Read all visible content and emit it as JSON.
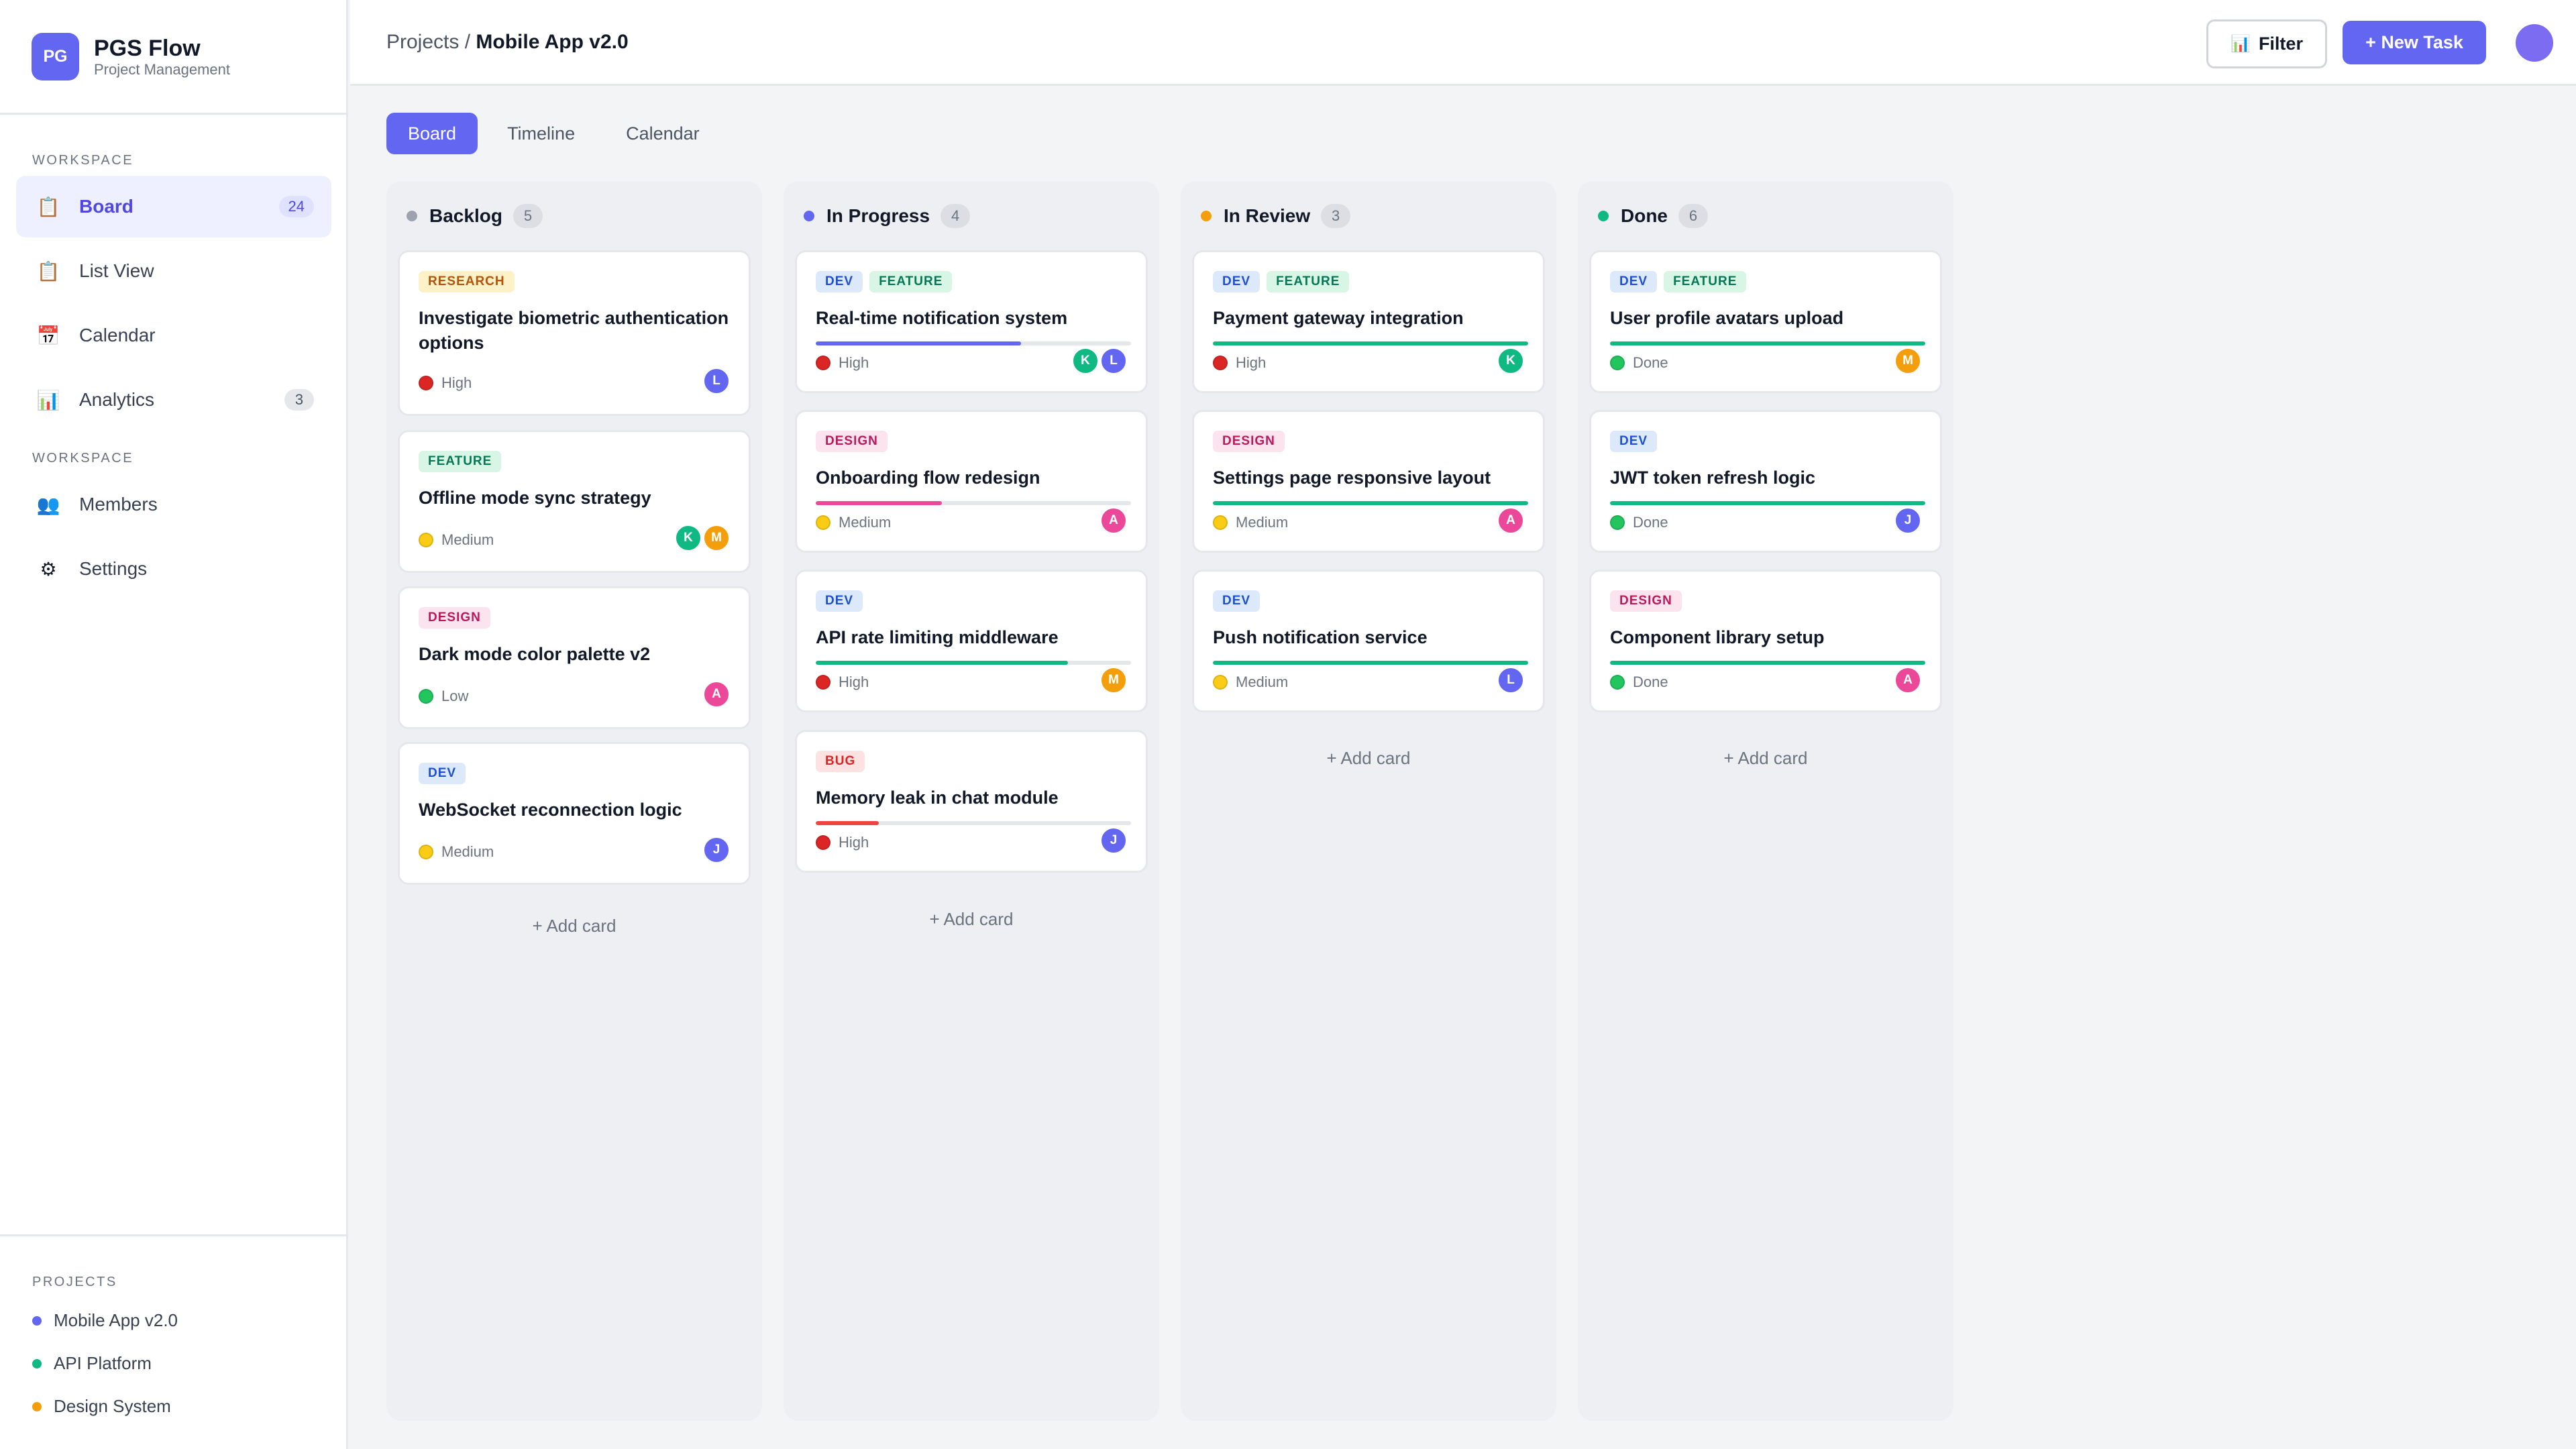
{
  "brand": {
    "initials": "PG",
    "name": "PGS Flow",
    "subtitle": "Project Management"
  },
  "sidebar": {
    "section1_label": "WORKSPACE",
    "section2_label": "WORKSPACE",
    "projects_label": "PROJECTS",
    "items": [
      {
        "label": "Board",
        "icon": "clipboard-icon",
        "glyph": "📋",
        "badge": "24",
        "active": true
      },
      {
        "label": "List View",
        "icon": "list-icon",
        "glyph": "📋",
        "badge": ""
      },
      {
        "label": "Calendar",
        "icon": "calendar-icon",
        "glyph": "📅",
        "badge": ""
      },
      {
        "label": "Analytics",
        "icon": "bar-chart-icon",
        "glyph": "📊",
        "badge": "3"
      },
      {
        "label": "Members",
        "icon": "members-icon",
        "glyph": "👥",
        "badge": ""
      },
      {
        "label": "Settings",
        "icon": "gear-icon",
        "glyph": "⚙",
        "badge": ""
      }
    ],
    "projects": [
      {
        "label": "Mobile App v2.0",
        "color": "#6366f1"
      },
      {
        "label": "API Platform",
        "color": "#10b981"
      },
      {
        "label": "Design System",
        "color": "#f59e0b"
      }
    ]
  },
  "header": {
    "breadcrumb_root": "Projects /",
    "breadcrumb_current": "Mobile App v2.0",
    "filter_label": "Filter",
    "filter_icon": "📊",
    "new_task_label": "+ New Task"
  },
  "tabs": [
    "Board",
    "Timeline",
    "Calendar"
  ],
  "colors": {
    "accent": "#6366f1",
    "priority_high": "#dc2626",
    "priority_medium": "#facc15",
    "priority_low": "#22c55e",
    "done": "#22c55e"
  },
  "add_card_label": "+ Add card",
  "columns": [
    {
      "title": "Backlog",
      "count": "5",
      "dot": "#9ca3af",
      "cards": [
        {
          "tags": [
            {
              "label": "RESEARCH",
              "kind": "research"
            }
          ],
          "title": "Investigate biometric authentication options",
          "status": "High",
          "status_color": "#dc2626",
          "avatars": [
            {
              "l": "L",
              "c": "#6366f1"
            }
          ]
        },
        {
          "tags": [
            {
              "label": "FEATURE",
              "kind": "feature"
            }
          ],
          "title": "Offline mode sync strategy",
          "status": "Medium",
          "status_color": "#facc15",
          "avatars": [
            {
              "l": "K",
              "c": "#10b981"
            },
            {
              "l": "M",
              "c": "#f59e0b"
            }
          ]
        },
        {
          "tags": [
            {
              "label": "DESIGN",
              "kind": "design"
            }
          ],
          "title": "Dark mode color palette v2",
          "status": "Low",
          "status_color": "#22c55e",
          "avatars": [
            {
              "l": "A",
              "c": "#ec4899"
            }
          ]
        },
        {
          "tags": [
            {
              "label": "DEV",
              "kind": "dev"
            }
          ],
          "title": "WebSocket reconnection logic",
          "status": "Medium",
          "status_color": "#facc15",
          "avatars": [
            {
              "l": "J",
              "c": "#6366f1"
            }
          ]
        }
      ]
    },
    {
      "title": "In Progress",
      "count": "4",
      "dot": "#6366f1",
      "cards": [
        {
          "tags": [
            {
              "label": "DEV",
              "kind": "dev"
            },
            {
              "label": "FEATURE",
              "kind": "feature"
            }
          ],
          "title": "Real-time notification system",
          "status": "High",
          "status_color": "#dc2626",
          "progress": 0.65,
          "progress_color": "#6366f1",
          "avatars": [
            {
              "l": "K",
              "c": "#10b981"
            },
            {
              "l": "L",
              "c": "#6366f1"
            }
          ]
        },
        {
          "tags": [
            {
              "label": "DESIGN",
              "kind": "design"
            }
          ],
          "title": "Onboarding flow redesign",
          "status": "Medium",
          "status_color": "#facc15",
          "progress": 0.4,
          "progress_color": "#ec4899",
          "avatars": [
            {
              "l": "A",
              "c": "#ec4899"
            }
          ]
        },
        {
          "tags": [
            {
              "label": "DEV",
              "kind": "dev"
            }
          ],
          "title": "API rate limiting middleware",
          "status": "High",
          "status_color": "#dc2626",
          "progress": 0.8,
          "progress_color": "#10b981",
          "avatars": [
            {
              "l": "M",
              "c": "#f59e0b"
            }
          ]
        },
        {
          "tags": [
            {
              "label": "BUG",
              "kind": "bug"
            }
          ],
          "title": "Memory leak in chat module",
          "status": "High",
          "status_color": "#dc2626",
          "progress": 0.2,
          "progress_color": "#ef4444",
          "avatars": [
            {
              "l": "J",
              "c": "#6366f1"
            }
          ]
        }
      ]
    },
    {
      "title": "In Review",
      "count": "3",
      "dot": "#f59e0b",
      "cards": [
        {
          "tags": [
            {
              "label": "DEV",
              "kind": "dev"
            },
            {
              "label": "FEATURE",
              "kind": "feature"
            }
          ],
          "title": "Payment gateway integration",
          "status": "High",
          "status_color": "#dc2626",
          "progress": 1.0,
          "progress_color": "#10b981",
          "avatars": [
            {
              "l": "K",
              "c": "#10b981"
            }
          ]
        },
        {
          "tags": [
            {
              "label": "DESIGN",
              "kind": "design"
            }
          ],
          "title": "Settings page responsive layout",
          "status": "Medium",
          "status_color": "#facc15",
          "progress": 1.0,
          "progress_color": "#10b981",
          "avatars": [
            {
              "l": "A",
              "c": "#ec4899"
            }
          ]
        },
        {
          "tags": [
            {
              "label": "DEV",
              "kind": "dev"
            }
          ],
          "title": "Push notification service",
          "status": "Medium",
          "status_color": "#facc15",
          "progress": 1.0,
          "progress_color": "#10b981",
          "avatars": [
            {
              "l": "L",
              "c": "#6366f1"
            }
          ]
        }
      ]
    },
    {
      "title": "Done",
      "count": "6",
      "dot": "#10b981",
      "cards": [
        {
          "tags": [
            {
              "label": "DEV",
              "kind": "dev"
            },
            {
              "label": "FEATURE",
              "kind": "feature"
            }
          ],
          "title": "User profile avatars upload",
          "status": "Done",
          "status_color": "#22c55e",
          "progress": 1.0,
          "progress_color": "#10b981",
          "avatars": [
            {
              "l": "M",
              "c": "#f59e0b"
            }
          ]
        },
        {
          "tags": [
            {
              "label": "DEV",
              "kind": "dev"
            }
          ],
          "title": "JWT token refresh logic",
          "status": "Done",
          "status_color": "#22c55e",
          "progress": 1.0,
          "progress_color": "#10b981",
          "avatars": [
            {
              "l": "J",
              "c": "#6366f1"
            }
          ]
        },
        {
          "tags": [
            {
              "label": "DESIGN",
              "kind": "design"
            }
          ],
          "title": "Component library setup",
          "status": "Done",
          "status_color": "#22c55e",
          "progress": 1.0,
          "progress_color": "#10b981",
          "avatars": [
            {
              "l": "A",
              "c": "#ec4899"
            }
          ]
        }
      ]
    }
  ]
}
